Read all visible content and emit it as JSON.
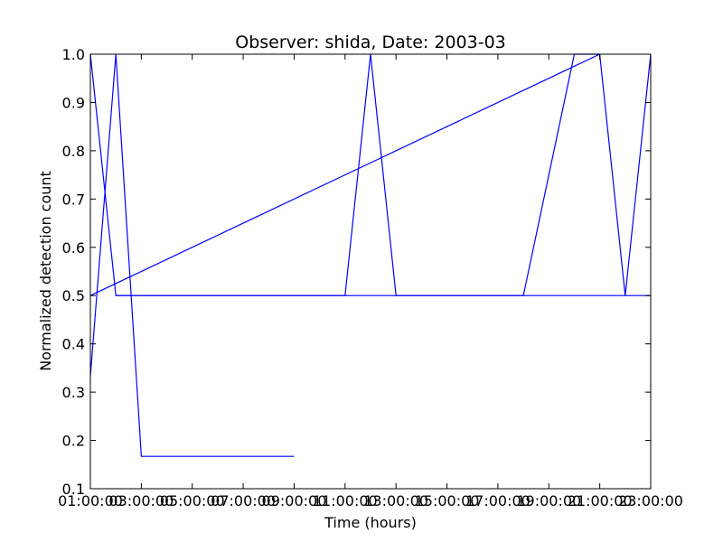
{
  "chart_data": {
    "type": "line",
    "title": "Observer: shida, Date: 2003-03",
    "xlabel": "Time (hours)",
    "ylabel": "Normalized detection count",
    "xlim": [
      1,
      23
    ],
    "ylim": [
      0.1,
      1.0
    ],
    "grid": false,
    "x_tick_values": [
      1,
      3,
      5,
      7,
      9,
      11,
      13,
      15,
      17,
      19,
      21,
      23
    ],
    "x_tick_labels": [
      "01:00:00",
      "03:00:00",
      "05:00:00",
      "07:00:00",
      "09:00:00",
      "11:00:00",
      "13:00:00",
      "15:00:00",
      "17:00:00",
      "19:00:00",
      "21:00:00",
      "23:00:00"
    ],
    "y_ticks": [
      0.1,
      0.2,
      0.3,
      0.4,
      0.5,
      0.6,
      0.7,
      0.8,
      0.9,
      1.0
    ],
    "y_tick_labels": [
      "0.1",
      "0.2",
      "0.3",
      "0.4",
      "0.5",
      "0.6",
      "0.7",
      "0.8",
      "0.9",
      "1.0"
    ],
    "color": "#0000ff",
    "series": [
      {
        "x": [
          1,
          2,
          3,
          9
        ],
        "y": [
          0.333,
          1.0,
          0.167,
          0.167
        ]
      },
      {
        "x": [
          1,
          2,
          3,
          11,
          12,
          13,
          18,
          19,
          20,
          21,
          22,
          23
        ],
        "y": [
          1.0,
          0.5,
          0.5,
          0.5,
          1.0,
          0.5,
          0.5,
          0.75,
          1.0,
          1.0,
          0.5,
          1.0
        ]
      },
      {
        "x": [
          1,
          21
        ],
        "y": [
          0.5,
          1.0
        ]
      },
      {
        "x": [
          2,
          3,
          9,
          23
        ],
        "y": [
          0.5,
          0.5,
          0.5,
          0.5
        ]
      }
    ]
  }
}
